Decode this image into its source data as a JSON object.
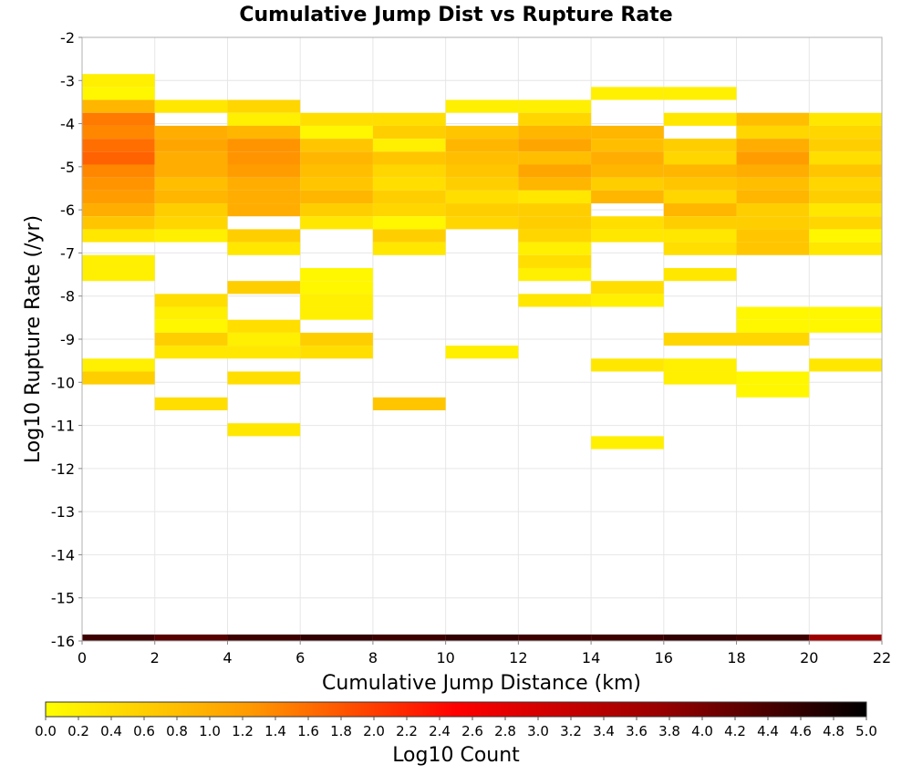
{
  "chart_data": {
    "type": "heatmap",
    "title": "Cumulative Jump Dist vs Rupture Rate",
    "xlabel": "Cumulative Jump Distance (km)",
    "ylabel": "Log10 Rupture Rate (/yr)",
    "xlim": [
      0,
      22
    ],
    "ylim": [
      -16,
      -2
    ],
    "x_ticks": [
      0,
      2,
      4,
      6,
      8,
      10,
      12,
      14,
      16,
      18,
      20,
      22
    ],
    "y_ticks": [
      -2,
      -3,
      -4,
      -5,
      -6,
      -7,
      -8,
      -9,
      -10,
      -11,
      -12,
      -13,
      -14,
      -15,
      -16
    ],
    "bin_width_x": 2,
    "bin_height_y": 0.3,
    "colorbar": {
      "label": "Log10 Count",
      "range": [
        0,
        5
      ],
      "ticks": [
        "0.0",
        "0.2",
        "0.4",
        "0.6",
        "0.8",
        "1.0",
        "1.2",
        "1.4",
        "1.6",
        "1.8",
        "2.0",
        "2.2",
        "2.4",
        "2.6",
        "2.8",
        "3.0",
        "3.2",
        "3.4",
        "3.6",
        "3.8",
        "4.0",
        "4.2",
        "4.4",
        "4.6",
        "4.8",
        "5.0"
      ],
      "colors": [
        "#ffff00",
        "#ff9900",
        "#ff0000",
        "#990000",
        "#000000"
      ]
    },
    "cells": [
      {
        "x": 0,
        "y": -3.0,
        "value": 0.2
      },
      {
        "x": 0,
        "y": -3.3,
        "value": 0.1
      },
      {
        "x": 0,
        "y": -3.6,
        "value": 0.9
      },
      {
        "x": 0,
        "y": -3.9,
        "value": 1.5
      },
      {
        "x": 0,
        "y": -4.2,
        "value": 1.4
      },
      {
        "x": 0,
        "y": -4.5,
        "value": 1.6
      },
      {
        "x": 0,
        "y": -4.8,
        "value": 1.7
      },
      {
        "x": 0,
        "y": -5.1,
        "value": 1.4
      },
      {
        "x": 0,
        "y": -5.4,
        "value": 1.3
      },
      {
        "x": 0,
        "y": -5.7,
        "value": 1.2
      },
      {
        "x": 0,
        "y": -6.0,
        "value": 1.0
      },
      {
        "x": 0,
        "y": -6.3,
        "value": 0.7
      },
      {
        "x": 0,
        "y": -6.6,
        "value": 0.3
      },
      {
        "x": 0,
        "y": -7.2,
        "value": 0.2
      },
      {
        "x": 0,
        "y": -7.5,
        "value": 0.2
      },
      {
        "x": 0,
        "y": -9.6,
        "value": 0.2
      },
      {
        "x": 0,
        "y": -9.9,
        "value": 0.6
      },
      {
        "x": 0,
        "y": -16.0,
        "value": 4.5
      },
      {
        "x": 2,
        "y": -3.6,
        "value": 0.3
      },
      {
        "x": 2,
        "y": -4.2,
        "value": 1.0
      },
      {
        "x": 2,
        "y": -4.5,
        "value": 1.1
      },
      {
        "x": 2,
        "y": -4.8,
        "value": 1.0
      },
      {
        "x": 2,
        "y": -5.1,
        "value": 1.0
      },
      {
        "x": 2,
        "y": -5.4,
        "value": 0.8
      },
      {
        "x": 2,
        "y": -5.7,
        "value": 0.9
      },
      {
        "x": 2,
        "y": -6.0,
        "value": 0.6
      },
      {
        "x": 2,
        "y": -6.3,
        "value": 0.5
      },
      {
        "x": 2,
        "y": -6.6,
        "value": 0.2
      },
      {
        "x": 2,
        "y": -8.1,
        "value": 0.4
      },
      {
        "x": 2,
        "y": -8.4,
        "value": 0.2
      },
      {
        "x": 2,
        "y": -8.7,
        "value": 0.1
      },
      {
        "x": 2,
        "y": -9.0,
        "value": 0.6
      },
      {
        "x": 2,
        "y": -9.3,
        "value": 0.3
      },
      {
        "x": 2,
        "y": -10.5,
        "value": 0.4
      },
      {
        "x": 2,
        "y": -16.0,
        "value": 4.3
      },
      {
        "x": 4,
        "y": -3.6,
        "value": 0.5
      },
      {
        "x": 4,
        "y": -3.9,
        "value": 0.2
      },
      {
        "x": 4,
        "y": -4.2,
        "value": 0.9
      },
      {
        "x": 4,
        "y": -4.5,
        "value": 1.3
      },
      {
        "x": 4,
        "y": -4.8,
        "value": 1.3
      },
      {
        "x": 4,
        "y": -5.1,
        "value": 1.2
      },
      {
        "x": 4,
        "y": -5.4,
        "value": 1.0
      },
      {
        "x": 4,
        "y": -5.7,
        "value": 1.0
      },
      {
        "x": 4,
        "y": -6.0,
        "value": 1.0
      },
      {
        "x": 4,
        "y": -6.6,
        "value": 0.6
      },
      {
        "x": 4,
        "y": -6.9,
        "value": 0.3
      },
      {
        "x": 4,
        "y": -7.8,
        "value": 0.6
      },
      {
        "x": 4,
        "y": -8.7,
        "value": 0.4
      },
      {
        "x": 4,
        "y": -9.0,
        "value": 0.2
      },
      {
        "x": 4,
        "y": -9.3,
        "value": 0.3
      },
      {
        "x": 4,
        "y": -9.9,
        "value": 0.4
      },
      {
        "x": 4,
        "y": -11.1,
        "value": 0.3
      },
      {
        "x": 4,
        "y": -16.0,
        "value": 4.5
      },
      {
        "x": 6,
        "y": -3.9,
        "value": 0.4
      },
      {
        "x": 6,
        "y": -4.2,
        "value": 0.1
      },
      {
        "x": 6,
        "y": -4.5,
        "value": 0.7
      },
      {
        "x": 6,
        "y": -4.8,
        "value": 0.9
      },
      {
        "x": 6,
        "y": -5.1,
        "value": 0.8
      },
      {
        "x": 6,
        "y": -5.4,
        "value": 0.7
      },
      {
        "x": 6,
        "y": -5.7,
        "value": 0.9
      },
      {
        "x": 6,
        "y": -6.0,
        "value": 0.6
      },
      {
        "x": 6,
        "y": -6.3,
        "value": 0.3
      },
      {
        "x": 6,
        "y": -7.5,
        "value": 0.1
      },
      {
        "x": 6,
        "y": -7.8,
        "value": 0.1
      },
      {
        "x": 6,
        "y": -8.1,
        "value": 0.2
      },
      {
        "x": 6,
        "y": -8.4,
        "value": 0.2
      },
      {
        "x": 6,
        "y": -9.0,
        "value": 0.6
      },
      {
        "x": 6,
        "y": -9.3,
        "value": 0.4
      },
      {
        "x": 6,
        "y": -16.0,
        "value": 4.6
      },
      {
        "x": 8,
        "y": -3.9,
        "value": 0.4
      },
      {
        "x": 8,
        "y": -4.2,
        "value": 0.6
      },
      {
        "x": 8,
        "y": -4.5,
        "value": 0.2
      },
      {
        "x": 8,
        "y": -4.8,
        "value": 0.7
      },
      {
        "x": 8,
        "y": -5.1,
        "value": 0.5
      },
      {
        "x": 8,
        "y": -5.4,
        "value": 0.4
      },
      {
        "x": 8,
        "y": -5.7,
        "value": 0.6
      },
      {
        "x": 8,
        "y": -6.0,
        "value": 0.5
      },
      {
        "x": 8,
        "y": -6.3,
        "value": 0.1
      },
      {
        "x": 8,
        "y": -6.6,
        "value": 0.6
      },
      {
        "x": 8,
        "y": -6.9,
        "value": 0.3
      },
      {
        "x": 8,
        "y": -10.5,
        "value": 0.7
      },
      {
        "x": 8,
        "y": -16.0,
        "value": 4.5
      },
      {
        "x": 10,
        "y": -3.6,
        "value": 0.2
      },
      {
        "x": 10,
        "y": -4.2,
        "value": 0.7
      },
      {
        "x": 10,
        "y": -4.5,
        "value": 0.9
      },
      {
        "x": 10,
        "y": -4.8,
        "value": 0.8
      },
      {
        "x": 10,
        "y": -5.1,
        "value": 0.7
      },
      {
        "x": 10,
        "y": -5.4,
        "value": 0.6
      },
      {
        "x": 10,
        "y": -5.7,
        "value": 0.4
      },
      {
        "x": 10,
        "y": -6.0,
        "value": 0.6
      },
      {
        "x": 10,
        "y": -6.3,
        "value": 0.5
      },
      {
        "x": 10,
        "y": -9.3,
        "value": 0.2
      },
      {
        "x": 10,
        "y": -16.0,
        "value": 4.6
      },
      {
        "x": 12,
        "y": -3.6,
        "value": 0.2
      },
      {
        "x": 12,
        "y": -3.9,
        "value": 0.5
      },
      {
        "x": 12,
        "y": -4.2,
        "value": 0.9
      },
      {
        "x": 12,
        "y": -4.5,
        "value": 1.1
      },
      {
        "x": 12,
        "y": -4.8,
        "value": 0.8
      },
      {
        "x": 12,
        "y": -5.1,
        "value": 1.1
      },
      {
        "x": 12,
        "y": -5.4,
        "value": 0.9
      },
      {
        "x": 12,
        "y": -5.7,
        "value": 0.3
      },
      {
        "x": 12,
        "y": -6.0,
        "value": 0.6
      },
      {
        "x": 12,
        "y": -6.3,
        "value": 0.6
      },
      {
        "x": 12,
        "y": -6.6,
        "value": 0.5
      },
      {
        "x": 12,
        "y": -6.9,
        "value": 0.2
      },
      {
        "x": 12,
        "y": -7.2,
        "value": 0.4
      },
      {
        "x": 12,
        "y": -7.5,
        "value": 0.2
      },
      {
        "x": 12,
        "y": -8.1,
        "value": 0.3
      },
      {
        "x": 12,
        "y": -16.0,
        "value": 4.5
      },
      {
        "x": 14,
        "y": -3.3,
        "value": 0.2
      },
      {
        "x": 14,
        "y": -4.2,
        "value": 0.9
      },
      {
        "x": 14,
        "y": -4.5,
        "value": 0.8
      },
      {
        "x": 14,
        "y": -4.8,
        "value": 1.0
      },
      {
        "x": 14,
        "y": -5.1,
        "value": 0.9
      },
      {
        "x": 14,
        "y": -5.4,
        "value": 0.6
      },
      {
        "x": 14,
        "y": -5.7,
        "value": 0.9
      },
      {
        "x": 14,
        "y": -6.3,
        "value": 0.4
      },
      {
        "x": 14,
        "y": -6.6,
        "value": 0.3
      },
      {
        "x": 14,
        "y": -7.8,
        "value": 0.4
      },
      {
        "x": 14,
        "y": -8.1,
        "value": 0.2
      },
      {
        "x": 14,
        "y": -9.6,
        "value": 0.3
      },
      {
        "x": 14,
        "y": -11.4,
        "value": 0.2
      },
      {
        "x": 14,
        "y": -16.0,
        "value": 4.5
      },
      {
        "x": 16,
        "y": -3.3,
        "value": 0.2
      },
      {
        "x": 16,
        "y": -3.9,
        "value": 0.3
      },
      {
        "x": 16,
        "y": -4.5,
        "value": 0.6
      },
      {
        "x": 16,
        "y": -4.8,
        "value": 0.5
      },
      {
        "x": 16,
        "y": -5.1,
        "value": 0.9
      },
      {
        "x": 16,
        "y": -5.4,
        "value": 0.7
      },
      {
        "x": 16,
        "y": -5.7,
        "value": 0.5
      },
      {
        "x": 16,
        "y": -6.0,
        "value": 0.9
      },
      {
        "x": 16,
        "y": -6.3,
        "value": 0.6
      },
      {
        "x": 16,
        "y": -6.6,
        "value": 0.3
      },
      {
        "x": 16,
        "y": -6.9,
        "value": 0.4
      },
      {
        "x": 16,
        "y": -7.5,
        "value": 0.3
      },
      {
        "x": 16,
        "y": -9.0,
        "value": 0.5
      },
      {
        "x": 16,
        "y": -9.6,
        "value": 0.2
      },
      {
        "x": 16,
        "y": -9.9,
        "value": 0.2
      },
      {
        "x": 16,
        "y": -16.0,
        "value": 4.6
      },
      {
        "x": 18,
        "y": -3.9,
        "value": 0.8
      },
      {
        "x": 18,
        "y": -4.2,
        "value": 0.5
      },
      {
        "x": 18,
        "y": -4.5,
        "value": 1.0
      },
      {
        "x": 18,
        "y": -4.8,
        "value": 1.2
      },
      {
        "x": 18,
        "y": -5.1,
        "value": 1.0
      },
      {
        "x": 18,
        "y": -5.4,
        "value": 0.8
      },
      {
        "x": 18,
        "y": -5.7,
        "value": 0.9
      },
      {
        "x": 18,
        "y": -6.0,
        "value": 0.6
      },
      {
        "x": 18,
        "y": -6.3,
        "value": 0.6
      },
      {
        "x": 18,
        "y": -6.6,
        "value": 0.7
      },
      {
        "x": 18,
        "y": -6.9,
        "value": 0.7
      },
      {
        "x": 18,
        "y": -8.4,
        "value": 0.1
      },
      {
        "x": 18,
        "y": -8.7,
        "value": 0.1
      },
      {
        "x": 18,
        "y": -9.0,
        "value": 0.5
      },
      {
        "x": 18,
        "y": -9.9,
        "value": 0.1
      },
      {
        "x": 18,
        "y": -10.2,
        "value": 0.1
      },
      {
        "x": 18,
        "y": -16.0,
        "value": 4.5
      },
      {
        "x": 20,
        "y": -3.9,
        "value": 0.3
      },
      {
        "x": 20,
        "y": -4.2,
        "value": 0.5
      },
      {
        "x": 20,
        "y": -4.5,
        "value": 0.6
      },
      {
        "x": 20,
        "y": -4.8,
        "value": 0.4
      },
      {
        "x": 20,
        "y": -5.1,
        "value": 0.7
      },
      {
        "x": 20,
        "y": -5.4,
        "value": 0.5
      },
      {
        "x": 20,
        "y": -5.7,
        "value": 0.6
      },
      {
        "x": 20,
        "y": -6.0,
        "value": 0.3
      },
      {
        "x": 20,
        "y": -6.3,
        "value": 0.5
      },
      {
        "x": 20,
        "y": -6.6,
        "value": 0.1
      },
      {
        "x": 20,
        "y": -6.9,
        "value": 0.3
      },
      {
        "x": 20,
        "y": -8.4,
        "value": 0.1
      },
      {
        "x": 20,
        "y": -8.7,
        "value": 0.1
      },
      {
        "x": 20,
        "y": -9.6,
        "value": 0.3
      },
      {
        "x": 20,
        "y": -16.0,
        "value": 3.7
      }
    ]
  }
}
